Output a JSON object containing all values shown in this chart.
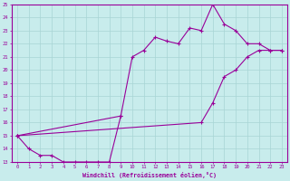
{
  "bg_color": "#c8ecec",
  "grid_color": "#a8d4d4",
  "line_color": "#990099",
  "xlabel": "Windchill (Refroidissement éolien,°C)",
  "xlim": [
    -0.5,
    23.5
  ],
  "ylim": [
    13,
    25
  ],
  "line1_x": [
    0,
    1,
    2,
    3,
    4,
    5,
    6,
    7,
    8,
    9
  ],
  "line1_y": [
    15.0,
    14.0,
    13.5,
    13.5,
    13.0,
    13.0,
    13.0,
    13.0,
    13.0,
    16.5
  ],
  "line2_x": [
    0,
    9,
    10,
    11,
    12,
    13,
    14,
    15,
    16,
    17,
    18,
    19,
    20,
    21,
    22,
    23
  ],
  "line2_y": [
    15.0,
    16.5,
    21.0,
    21.5,
    22.5,
    22.2,
    22.0,
    23.2,
    23.0,
    25.0,
    23.5,
    23.0,
    22.0,
    22.0,
    21.5,
    21.5
  ],
  "line3_x": [
    0,
    16,
    17,
    18,
    19,
    20,
    21,
    22,
    23
  ],
  "line3_y": [
    15.0,
    16.0,
    17.5,
    19.5,
    20.0,
    21.0,
    21.5,
    21.5,
    21.5
  ],
  "marker": "+",
  "markersize": 3,
  "linewidth": 0.8
}
